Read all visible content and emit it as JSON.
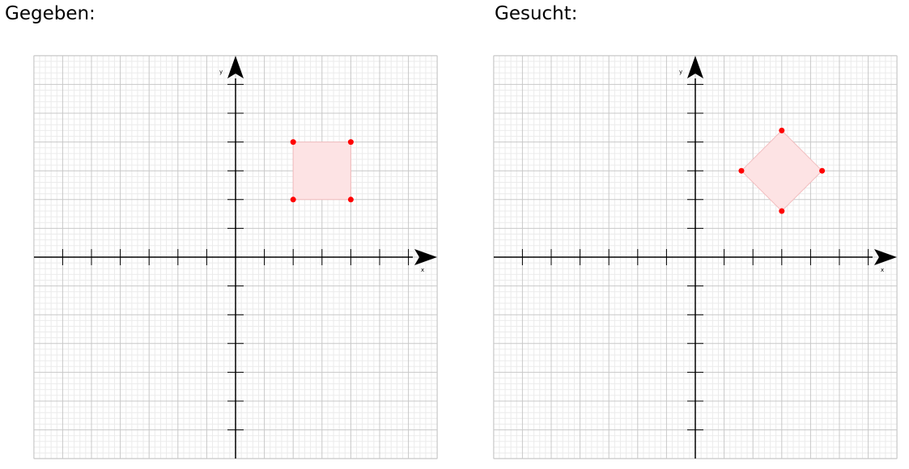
{
  "panels": [
    {
      "heading": "Gegeben:",
      "x_axis_label": "x",
      "y_axis_label": "y",
      "shape": "square",
      "vertices": [
        [
          2,
          4
        ],
        [
          4,
          4
        ],
        [
          4,
          2
        ],
        [
          2,
          2
        ]
      ]
    },
    {
      "heading": "Gesucht:",
      "x_axis_label": "x",
      "y_axis_label": "y",
      "shape": "rotated-square",
      "vertices": [
        [
          3,
          4.4
        ],
        [
          4.4,
          3
        ],
        [
          3,
          1.6
        ],
        [
          1.6,
          3
        ]
      ]
    }
  ],
  "colors": {
    "grid_minor": "#ebebeb",
    "grid_major": "#c8c8c8",
    "axis": "#000000",
    "shape_fill": "#fde3e4",
    "shape_stroke": "#f2bdbf",
    "point": "#ff0000"
  },
  "grid": {
    "x_range": [
      -7,
      7
    ],
    "y_range": [
      -7,
      7
    ],
    "minor_per_unit": 5
  }
}
